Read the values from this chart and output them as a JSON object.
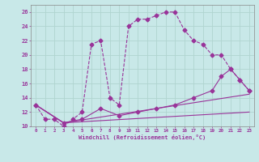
{
  "background_color": "#c8e8e8",
  "line_color": "#993399",
  "marker_style": "D",
  "marker_size": 2.5,
  "xlim": [
    -0.5,
    23.5
  ],
  "ylim": [
    10,
    27
  ],
  "xticks": [
    0,
    1,
    2,
    3,
    4,
    5,
    6,
    7,
    8,
    9,
    10,
    11,
    12,
    13,
    14,
    15,
    16,
    17,
    18,
    19,
    20,
    21,
    22,
    23
  ],
  "yticks": [
    10,
    12,
    14,
    16,
    18,
    20,
    22,
    24,
    26
  ],
  "xlabel": "Windchill (Refroidissement éolien,°C)",
  "grid_color": "#b0d4d0",
  "series": [
    {
      "x": [
        0,
        1,
        2,
        3,
        4,
        5,
        6,
        7,
        8,
        9,
        10,
        11,
        12,
        13,
        14,
        15,
        16,
        17,
        18,
        19,
        20,
        21,
        22,
        23
      ],
      "y": [
        13,
        11,
        11,
        10,
        11,
        12,
        21.5,
        22,
        14,
        13,
        24,
        25,
        25,
        25.5,
        26,
        26,
        23.5,
        22,
        21.5,
        20,
        20,
        18,
        16.5,
        15
      ],
      "has_markers": true,
      "linestyle": "--"
    },
    {
      "x": [
        0,
        3,
        5,
        7,
        9,
        11,
        13,
        15,
        17,
        19,
        20,
        21,
        22,
        23
      ],
      "y": [
        13,
        10.5,
        11,
        12.5,
        11.5,
        12,
        12.5,
        13,
        14,
        15,
        17,
        18,
        16.5,
        15
      ],
      "has_markers": true,
      "linestyle": "-"
    },
    {
      "x": [
        0,
        3,
        23
      ],
      "y": [
        13,
        10.5,
        14.5
      ],
      "has_markers": false,
      "linestyle": "-"
    },
    {
      "x": [
        0,
        3,
        23
      ],
      "y": [
        13,
        10.5,
        12
      ],
      "has_markers": false,
      "linestyle": "-"
    }
  ]
}
